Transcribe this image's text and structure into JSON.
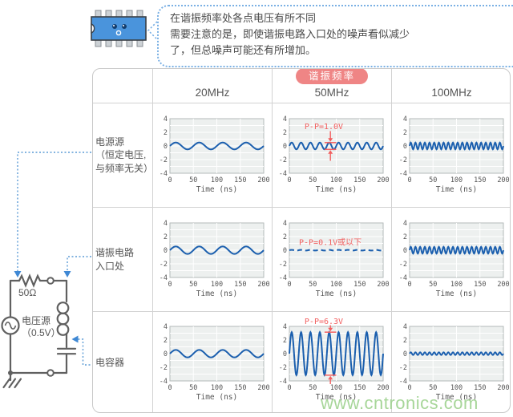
{
  "note": {
    "lines": [
      "在谐振频率处各点电压有所不同",
      "需要注意的是，即使谐振电路入口处的噪声看似减少",
      "了，但总噪声可能还有所增加。"
    ]
  },
  "table": {
    "header": {
      "badge": "谐振频率",
      "cols": [
        "20MHz",
        "50MHz",
        "100MHz"
      ]
    },
    "rows": [
      {
        "label_lines": [
          "电源源",
          "（恒定电压,",
          "与频率无关）"
        ]
      },
      {
        "label_lines": [
          "谐振电路",
          "入口处"
        ]
      },
      {
        "label_lines": [
          "电容器"
        ]
      }
    ]
  },
  "circuit": {
    "resistor_label": "50Ω",
    "source_label_lines": [
      "电压源",
      "（0.5V）"
    ]
  },
  "watermark": "www.cntronics.com",
  "colors": {
    "wave_blue": "#1b5fae",
    "annotation_red": "#f25f5f",
    "badge_red": "#ef8585",
    "connector_blue": "#5b9bd5",
    "watermark_green": "#a3d494",
    "chip_blue": "#4a94dc"
  },
  "chart_data": {
    "type": "line",
    "common": {
      "xlabel": "Time (ns)",
      "x_ticks": [
        0,
        50,
        100,
        150,
        200
      ],
      "y_ticks": [
        4,
        2,
        0,
        -2,
        -4
      ],
      "xlim": [
        0,
        200
      ],
      "ylim": [
        -4,
        4
      ],
      "grid": true
    },
    "cells": [
      {
        "point": "电源源",
        "frequency": "20MHz",
        "cycles": 4,
        "amplitude_v": 0.5,
        "p_p_v": 1.0,
        "annotation": null,
        "ann_style": null,
        "style": "solid"
      },
      {
        "point": "电源源",
        "frequency": "50MHz",
        "cycles": 10,
        "amplitude_v": 0.5,
        "p_p_v": 1.0,
        "annotation": "P-P=1.0V",
        "ann_style": "arrows-inside",
        "style": "solid"
      },
      {
        "point": "电源源",
        "frequency": "100MHz",
        "cycles": 20,
        "amplitude_v": 0.5,
        "p_p_v": 1.0,
        "annotation": null,
        "ann_style": null,
        "style": "solid"
      },
      {
        "point": "谐振电路入口处",
        "frequency": "20MHz",
        "cycles": 4,
        "amplitude_v": 0.55,
        "p_p_v": 1.1,
        "annotation": null,
        "ann_style": null,
        "style": "solid"
      },
      {
        "point": "谐振电路入口处",
        "frequency": "50MHz",
        "cycles": 10,
        "amplitude_v": 0.05,
        "p_p_v": 0.1,
        "annotation": "P-P=0.1V或以下",
        "ann_style": "text-inside",
        "style": "dashed"
      },
      {
        "point": "谐振电路入口处",
        "frequency": "100MHz",
        "cycles": 20,
        "amplitude_v": 0.5,
        "p_p_v": 1.0,
        "annotation": null,
        "ann_style": null,
        "style": "solid"
      },
      {
        "point": "电容器",
        "frequency": "20MHz",
        "cycles": 4,
        "amplitude_v": 0.55,
        "p_p_v": 1.1,
        "annotation": null,
        "ann_style": null,
        "style": "solid"
      },
      {
        "point": "电容器",
        "frequency": "50MHz",
        "cycles": 10,
        "amplitude_v": 3.15,
        "p_p_v": 6.3,
        "annotation": "P-P=6.3V",
        "ann_style": "arrows-outside",
        "style": "solid"
      },
      {
        "point": "电容器",
        "frequency": "100MHz",
        "cycles": 20,
        "amplitude_v": 0.2,
        "p_p_v": 0.4,
        "annotation": null,
        "ann_style": null,
        "style": "solid"
      }
    ]
  }
}
